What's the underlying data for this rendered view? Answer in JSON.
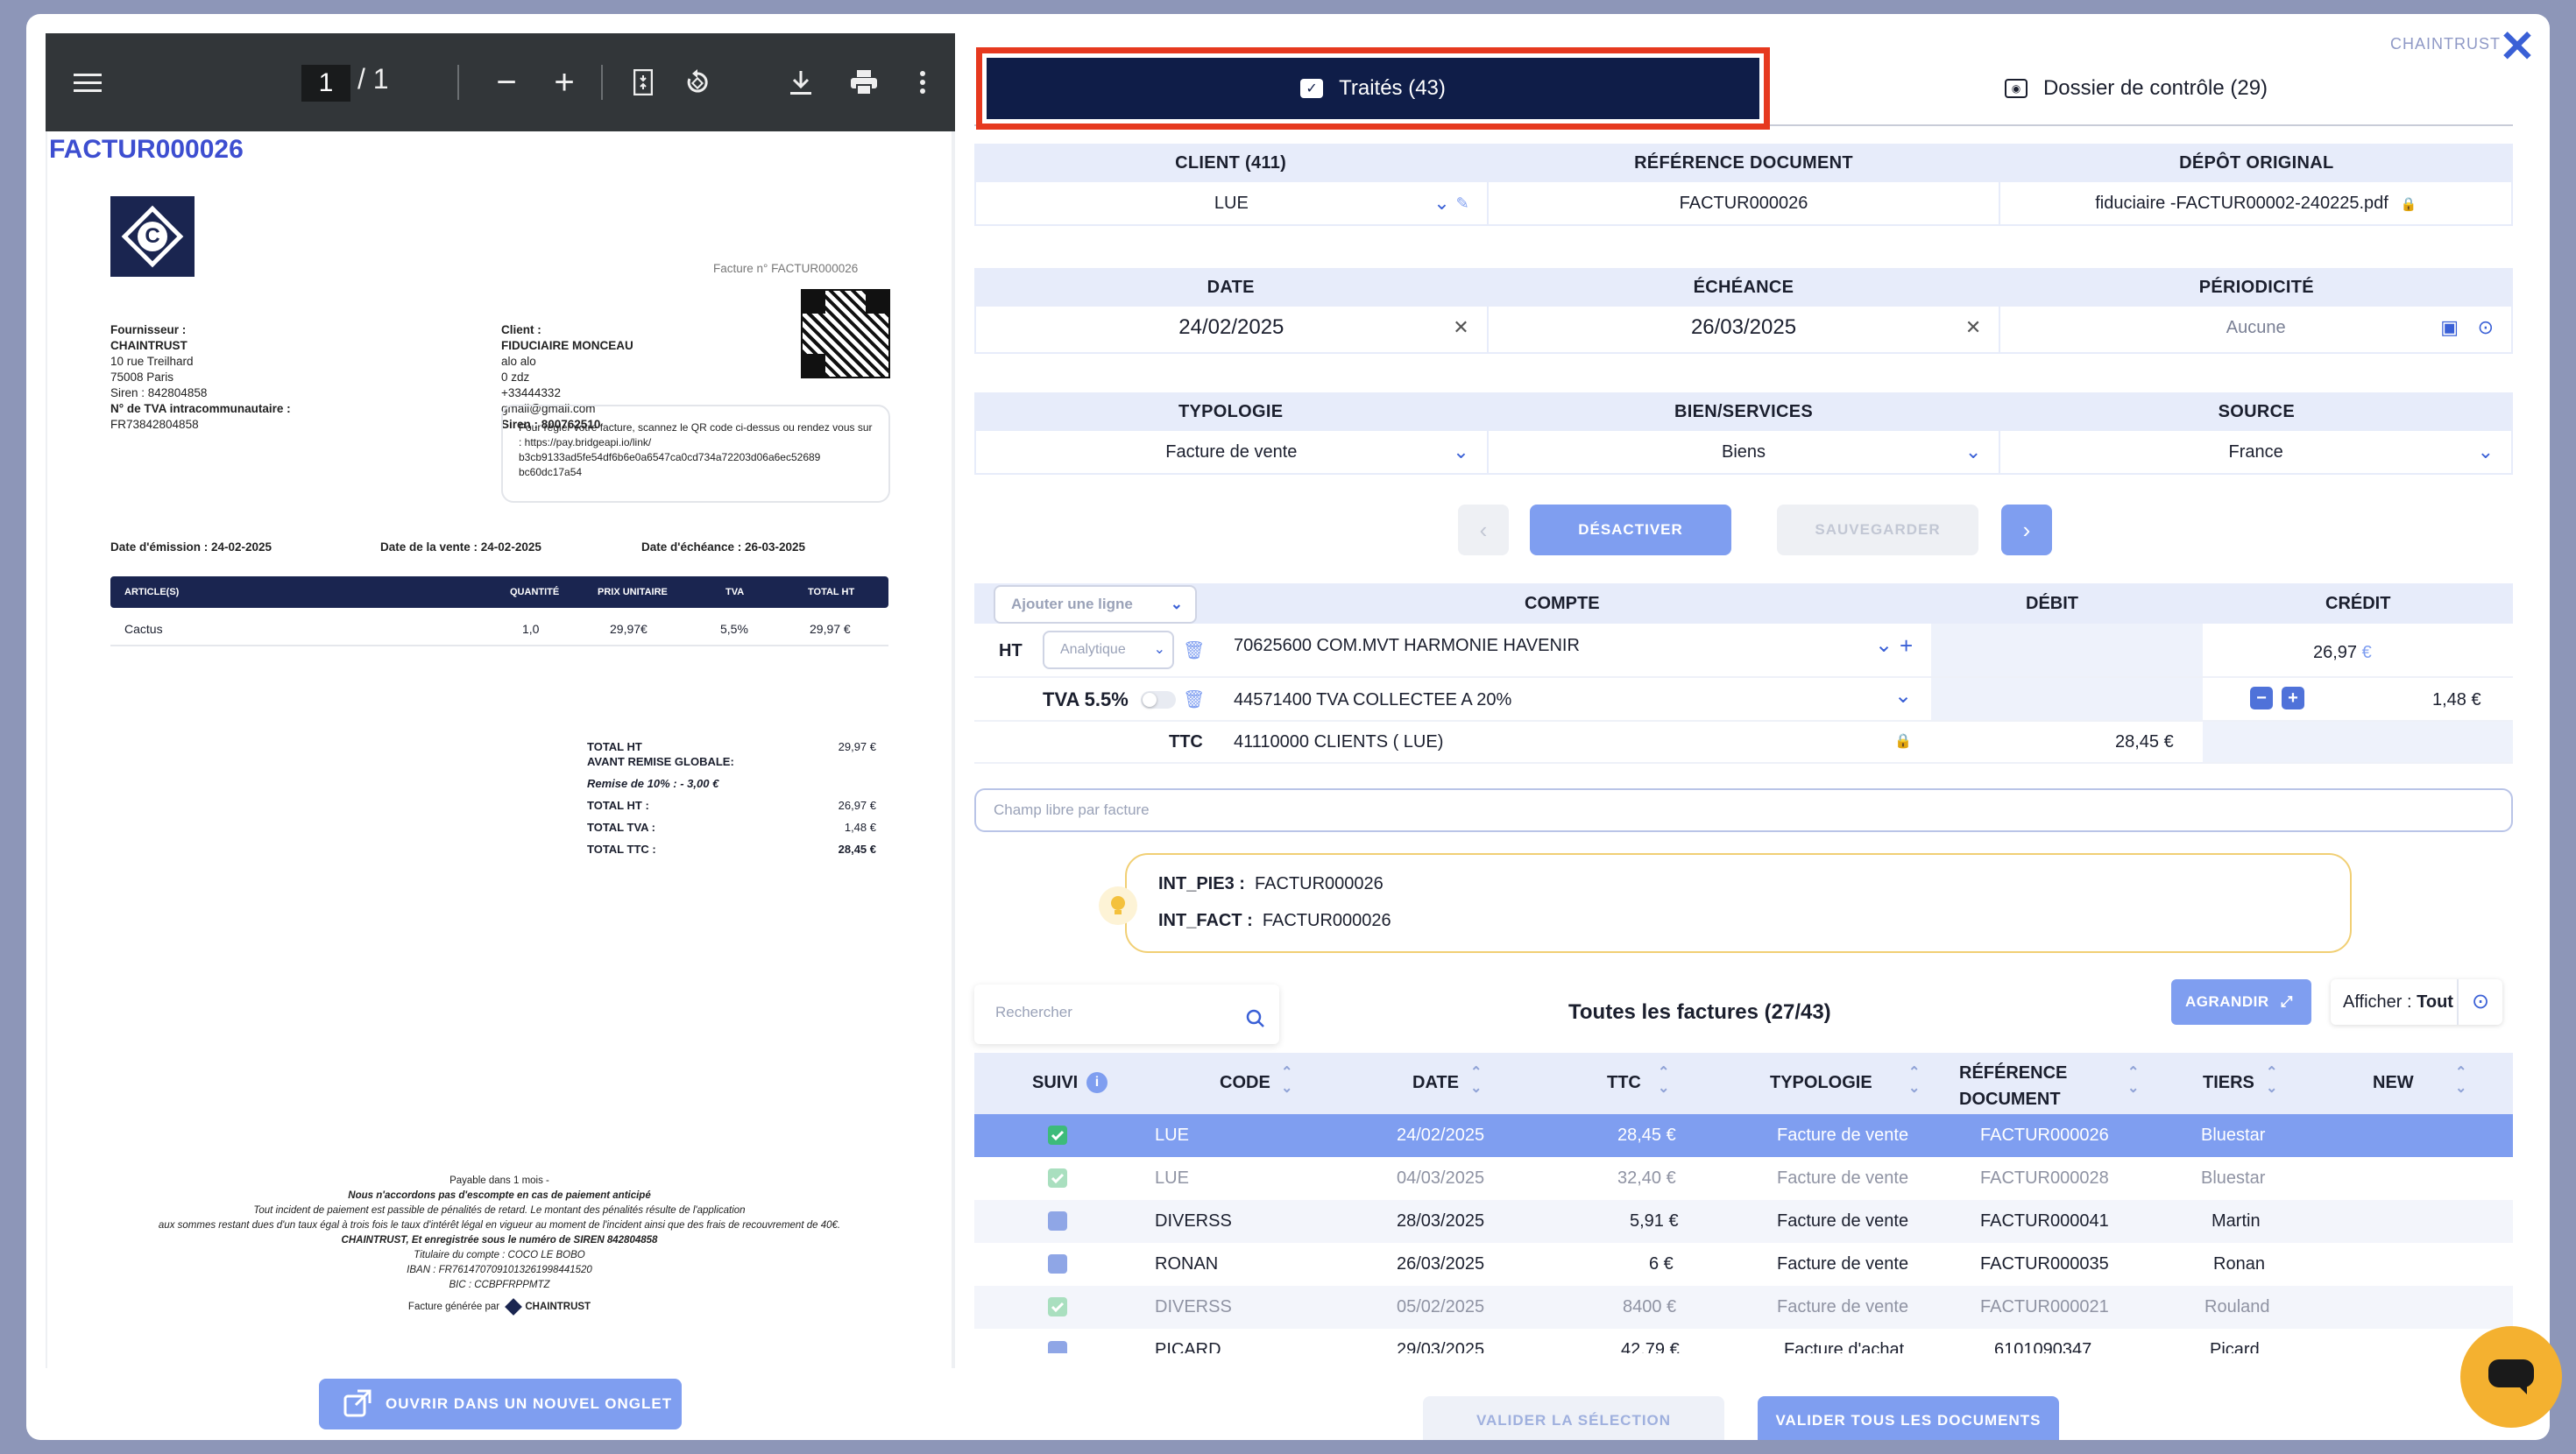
{
  "app": {
    "brand": "CHAINTRUST"
  },
  "pdf_viewer": {
    "page_current": "1",
    "page_total": "1",
    "invoice": {
      "title": "FACTUR000026",
      "number_label": "Facture n° FACTUR000026",
      "supplier": [
        "Fournisseur :",
        "CHAINTRUST",
        "10 rue Treilhard",
        "75008 Paris",
        "Siren : 842804858",
        "N° de TVA intracommunautaire :",
        "FR73842804858"
      ],
      "client": [
        "Client :",
        "FIDUCIAIRE MONCEAU",
        "alo alo",
        "0 zdz",
        "+33444332",
        "gmail@gmail.com",
        "Siren : 800762510"
      ],
      "payment_box": "Pour régler votre facture, scannez le QR code ci-dessus ou rendez vous sur : https://pay.bridgeapi.io/link/ b3cb9133ad5fe54df6b6e0a6547ca0cd734a72203d06a6ec52689 bc60dc17a54",
      "date_emission": "Date d'émission : 24-02-2025",
      "date_vente": "Date de la vente : 24-02-2025",
      "date_echeance": "Date d'échéance : 26-03-2025",
      "table_headers": [
        "ARTICLE(S)",
        "QUANTITÉ",
        "PRIX UNITAIRE",
        "TVA",
        "TOTAL HT"
      ],
      "table_rows": [
        [
          "Cactus",
          "1,0",
          "29,97€",
          "5,5%",
          "29,97 €"
        ]
      ],
      "totals": [
        [
          "TOTAL HT",
          "29,97 €"
        ],
        [
          "AVANT REMISE GLOBALE:",
          ""
        ],
        [
          "Remise de 10% : - 3,00 €",
          ""
        ],
        [
          "TOTAL HT :",
          "26,97 €"
        ],
        [
          "TOTAL TVA :",
          "1,48 €"
        ],
        [
          "TOTAL TTC :",
          "28,45 €"
        ]
      ],
      "footer": [
        "Payable dans 1 mois -",
        "Nous n'accordons pas d'escompte en cas de paiement anticipé",
        "Tout incident de paiement est passible de pénalités de retard. Le montant des pénalités résulte de l'application",
        "aux sommes restant dues d'un taux égal à trois fois le taux d'intérêt légal en vigueur au moment de l'incident ainsi que des frais de recouvrement de 40€.",
        "CHAINTRUST, Et enregistrée sous le numéro de SIREN 842804858",
        "Titulaire du compte : COCO LE BOBO",
        "IBAN : FR7614707091013261998441520",
        "BIC : CCBPFRPPMTZ",
        "Facture générée par",
        "CHAINTRUST"
      ]
    },
    "open_new_tab": "OUVRIR DANS UN NOUVEL ONGLET"
  },
  "tabs": [
    {
      "label": "Traités (43)"
    },
    {
      "label": "Dossier de contrôle (29)"
    }
  ],
  "doc_info": {
    "headers1": [
      "CLIENT (411)",
      "RÉFÉRENCE DOCUMENT",
      "DÉPÔT ORIGINAL"
    ],
    "values1": [
      "LUE",
      "FACTUR000026",
      "fiduciaire -FACTUR00002-240225.pdf"
    ],
    "headers2": [
      "DATE",
      "ÉCHÉANCE",
      "PÉRIODICITÉ"
    ],
    "values2": [
      "24/02/2025",
      "26/03/2025",
      "Aucune"
    ],
    "headers3": [
      "TYPOLOGIE",
      "BIEN/SERVICES",
      "SOURCE"
    ],
    "values3": [
      "Facture de vente",
      "Biens",
      "France"
    ]
  },
  "actions": {
    "deactivate": "DÉSACTIVER",
    "save": "SAUVEGARDER"
  },
  "accounting": {
    "add_line_placeholder": "Ajouter une ligne",
    "headers": [
      "COMPTE",
      "DÉBIT",
      "CRÉDIT"
    ],
    "rows": [
      {
        "label": "HT",
        "analytic": "Analytique",
        "account": "70625600 COM.MVT HARMONIE HAVENIR",
        "debit": "",
        "credit": "26,97",
        "currency": "€"
      },
      {
        "label": "TVA 5.5%",
        "account": "44571400 TVA COLLECTEE A 20%",
        "debit": "",
        "credit": "1,48 €"
      },
      {
        "label": "TTC",
        "account": "41110000 CLIENTS ( LUE)",
        "debit": "28,45 €",
        "credit": ""
      }
    ]
  },
  "champ_libre_placeholder": "Champ libre par facture",
  "notes": [
    {
      "key": "INT_PIE3 :",
      "value": "FACTUR000026"
    },
    {
      "key": "INT_FACT :",
      "value": "FACTUR000026"
    }
  ],
  "invoice_list": {
    "search_placeholder": "Rechercher",
    "title": "Toutes les factures (27/43)",
    "expand": "AGRANDIR",
    "display_label": "Afficher :",
    "display_value": "Tout",
    "columns": [
      "SUIVI",
      "CODE",
      "DATE",
      "TTC",
      "TYPOLOGIE",
      "RÉFÉRENCE",
      "DOCUMENT",
      "TIERS",
      "NEW"
    ],
    "rows": [
      {
        "code": "LUE",
        "date": "24/02/2025",
        "ttc": "28,45 €",
        "typ": "Facture de vente",
        "ref": "FACTUR000026",
        "tiers": "Bluestar",
        "state": "selected"
      },
      {
        "code": "LUE",
        "date": "04/03/2025",
        "ttc": "32,40 €",
        "typ": "Facture de vente",
        "ref": "FACTUR000028",
        "tiers": "Bluestar",
        "state": "done"
      },
      {
        "code": "DIVERSS",
        "date": "28/03/2025",
        "ttc": "5,91 €",
        "typ": "Facture de vente",
        "ref": "FACTUR000041",
        "tiers": "Martin",
        "state": "todo"
      },
      {
        "code": "RONAN",
        "date": "26/03/2025",
        "ttc": "6 €",
        "typ": "Facture de vente",
        "ref": "FACTUR000035",
        "tiers": "Ronan",
        "state": "todo"
      },
      {
        "code": "DIVERSS",
        "date": "05/02/2025",
        "ttc": "8400 €",
        "typ": "Facture de vente",
        "ref": "FACTUR000021",
        "tiers": "Rouland",
        "state": "done"
      },
      {
        "code": "PICARD",
        "date": "29/03/2025",
        "ttc": "42.79 €",
        "typ": "Facture d'achat",
        "ref": "6101090347",
        "tiers": "Picard",
        "state": "todo"
      }
    ]
  },
  "footer_buttons": {
    "validate_selection": "VALIDER LA SÉLECTION",
    "validate_all": "VALIDER TOUS LES DOCUMENTS"
  },
  "colors": {
    "accent": "#3a60d6",
    "navy": "#0f1d48",
    "highlight_row": "#7f9ef0",
    "tab_outline": "#e6391f",
    "chat": "#f4b130"
  }
}
